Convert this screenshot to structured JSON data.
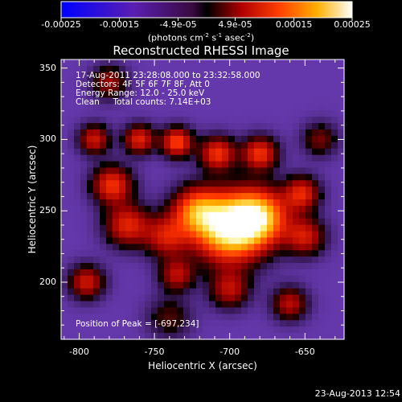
{
  "chart_data": {
    "type": "heatmap",
    "title": "Reconstructed RHESSI Image",
    "xlabel": "Heliocentric X (arcsec)",
    "ylabel": "Heliocentric Y (arcsec)",
    "xlim": [
      -812,
      -624
    ],
    "ylim": [
      160,
      356
    ],
    "xticks": [
      -800,
      -750,
      -700,
      -650
    ],
    "yticks": [
      200,
      250,
      300,
      350
    ],
    "colorbar": {
      "range": [
        -0.00025,
        0.00025
      ],
      "tick_labels": [
        "-0.00025",
        "-0.00015",
        "-4.9e-05",
        "4.9e-05",
        "0.00015",
        "0.00025"
      ],
      "tick_values": [
        -0.00025,
        -0.00015,
        -4.9e-05,
        4.9e-05,
        0.00015,
        0.00025
      ],
      "unit_label_parts": [
        "(photons cm",
        "-2",
        " s",
        "-1",
        " asec",
        "-2",
        ")"
      ]
    },
    "annotations": [
      "17-Aug-2011 23:28:08.000 to 23:32:58.000",
      "Detectors: 4F 5F 6F 7F 8F, Att 0",
      "Energy Range: 12.0 - 25.0 keV",
      "Clean     Total counts: 7.14E+03"
    ],
    "peak_label": "Position of Peak = [-697,234]",
    "peak": [
      -697,
      234
    ],
    "sources": [
      {
        "x": -700,
        "y": 238,
        "amp": 1.0,
        "w": 16
      },
      {
        "x": -680,
        "y": 246,
        "amp": 0.7,
        "w": 13
      },
      {
        "x": -722,
        "y": 250,
        "amp": 0.55,
        "w": 11
      },
      {
        "x": -742,
        "y": 232,
        "amp": 0.4,
        "w": 10
      },
      {
        "x": -768,
        "y": 240,
        "amp": 0.45,
        "w": 10
      },
      {
        "x": -778,
        "y": 268,
        "amp": 0.5,
        "w": 9
      },
      {
        "x": -735,
        "y": 298,
        "amp": 0.55,
        "w": 7
      },
      {
        "x": -708,
        "y": 290,
        "amp": 0.5,
        "w": 8
      },
      {
        "x": -680,
        "y": 290,
        "amp": 0.5,
        "w": 8
      },
      {
        "x": -652,
        "y": 262,
        "amp": 0.45,
        "w": 8
      },
      {
        "x": -650,
        "y": 232,
        "amp": 0.4,
        "w": 9
      },
      {
        "x": -760,
        "y": 300,
        "amp": 0.45,
        "w": 7
      },
      {
        "x": -790,
        "y": 300,
        "amp": 0.4,
        "w": 7
      },
      {
        "x": -795,
        "y": 200,
        "amp": 0.4,
        "w": 8
      },
      {
        "x": -700,
        "y": 195,
        "amp": 0.35,
        "w": 9
      },
      {
        "x": -660,
        "y": 185,
        "amp": 0.35,
        "w": 8
      },
      {
        "x": -735,
        "y": 205,
        "amp": 0.35,
        "w": 8
      },
      {
        "x": -640,
        "y": 300,
        "amp": 0.25,
        "w": 8
      },
      {
        "x": -780,
        "y": 340,
        "amp": 0.3,
        "w": 8
      },
      {
        "x": -740,
        "y": 175,
        "amp": 0.2,
        "w": 10
      }
    ]
  },
  "footer": {
    "timestamp": "23-Aug-2013 12:54"
  },
  "colors": {
    "background": "#000000",
    "axis": "#ffffff"
  }
}
